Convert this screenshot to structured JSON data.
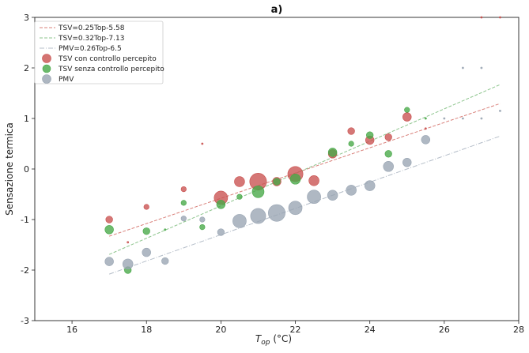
{
  "chart_data": {
    "type": "scatter",
    "title": "a)",
    "xlabel_main": "T",
    "xlabel_sub": "op",
    "xlabel_unit": " (°C)",
    "ylabel": "Sensazione termica",
    "xlim": [
      15,
      28
    ],
    "ylim": [
      -3,
      3
    ],
    "xticks": [
      16,
      18,
      20,
      22,
      24,
      26,
      28
    ],
    "yticks": [
      -3,
      -2,
      -1,
      0,
      1,
      2,
      3
    ],
    "legend_position": "top-left",
    "fit_lines": [
      {
        "name": "TSV=0.25Top-5.58",
        "slope": 0.25,
        "intercept": -5.58,
        "color": "#d9807a",
        "x_range": [
          17,
          27.5
        ]
      },
      {
        "name": "TSV=0.32Top-7.13",
        "slope": 0.32,
        "intercept": -7.13,
        "color": "#8cc48c",
        "x_range": [
          17,
          27.5
        ]
      },
      {
        "name": "PMV=0.26Top-6.5",
        "slope": 0.26,
        "intercept": -6.5,
        "color": "#b4bdc8",
        "x_range": [
          17,
          27.5
        ]
      }
    ],
    "series": [
      {
        "name": "TSV con controllo percepito",
        "color": "#c9514f",
        "points": [
          {
            "x": 17,
            "y": -1.0,
            "s": 3
          },
          {
            "x": 17.5,
            "y": -1.45,
            "s": 1
          },
          {
            "x": 18,
            "y": -0.75,
            "s": 2
          },
          {
            "x": 19,
            "y": -0.4,
            "s": 2
          },
          {
            "x": 19.5,
            "y": 0.5,
            "s": 1
          },
          {
            "x": 20,
            "y": -0.57,
            "s": 7
          },
          {
            "x": 20.5,
            "y": -0.25,
            "s": 5
          },
          {
            "x": 21,
            "y": -0.25,
            "s": 9
          },
          {
            "x": 21.5,
            "y": -0.25,
            "s": 4
          },
          {
            "x": 22,
            "y": -0.1,
            "s": 8
          },
          {
            "x": 22.5,
            "y": -0.23,
            "s": 5
          },
          {
            "x": 23,
            "y": 0.3,
            "s": 4
          },
          {
            "x": 23.5,
            "y": 0.75,
            "s": 3
          },
          {
            "x": 24,
            "y": 0.57,
            "s": 4
          },
          {
            "x": 24.5,
            "y": 0.63,
            "s": 3
          },
          {
            "x": 25,
            "y": 1.03,
            "s": 4
          },
          {
            "x": 25.5,
            "y": 0.8,
            "s": 1
          },
          {
            "x": 27,
            "y": 3.0,
            "s": 1
          },
          {
            "x": 27.5,
            "y": 3.0,
            "s": 1
          }
        ]
      },
      {
        "name": "TSV senza controllo percepito",
        "color": "#46a846",
        "points": [
          {
            "x": 17,
            "y": -1.2,
            "s": 4
          },
          {
            "x": 17.5,
            "y": -2.0,
            "s": 3
          },
          {
            "x": 18,
            "y": -1.23,
            "s": 3
          },
          {
            "x": 18.5,
            "y": -1.2,
            "s": 1
          },
          {
            "x": 19,
            "y": -0.67,
            "s": 2
          },
          {
            "x": 19.5,
            "y": -1.15,
            "s": 2
          },
          {
            "x": 20,
            "y": -0.7,
            "s": 4
          },
          {
            "x": 20.5,
            "y": -0.55,
            "s": 2
          },
          {
            "x": 21,
            "y": -0.45,
            "s": 6
          },
          {
            "x": 21.5,
            "y": -0.25,
            "s": 3
          },
          {
            "x": 22,
            "y": -0.2,
            "s": 5
          },
          {
            "x": 23,
            "y": 0.33,
            "s": 4
          },
          {
            "x": 23.5,
            "y": 0.5,
            "s": 2
          },
          {
            "x": 24,
            "y": 0.67,
            "s": 3
          },
          {
            "x": 24.5,
            "y": 0.3,
            "s": 3
          },
          {
            "x": 25,
            "y": 1.17,
            "s": 2
          },
          {
            "x": 25.5,
            "y": 1.0,
            "s": 1
          }
        ]
      },
      {
        "name": "PMV",
        "color": "#98a4b2",
        "points": [
          {
            "x": 17,
            "y": -1.83,
            "s": 4
          },
          {
            "x": 17.5,
            "y": -1.88,
            "s": 5
          },
          {
            "x": 18,
            "y": -1.65,
            "s": 4
          },
          {
            "x": 18.5,
            "y": -1.82,
            "s": 3
          },
          {
            "x": 19,
            "y": -0.98,
            "s": 2
          },
          {
            "x": 19.5,
            "y": -1.0,
            "s": 2
          },
          {
            "x": 20,
            "y": -1.25,
            "s": 3
          },
          {
            "x": 20.5,
            "y": -1.03,
            "s": 7
          },
          {
            "x": 21,
            "y": -0.93,
            "s": 8
          },
          {
            "x": 21.5,
            "y": -0.87,
            "s": 9
          },
          {
            "x": 22,
            "y": -0.77,
            "s": 7
          },
          {
            "x": 22.5,
            "y": -0.55,
            "s": 7
          },
          {
            "x": 23,
            "y": -0.52,
            "s": 5
          },
          {
            "x": 23.5,
            "y": -0.42,
            "s": 5
          },
          {
            "x": 24,
            "y": -0.33,
            "s": 5
          },
          {
            "x": 24.5,
            "y": 0.05,
            "s": 5
          },
          {
            "x": 25,
            "y": 0.13,
            "s": 4
          },
          {
            "x": 25.5,
            "y": 0.58,
            "s": 4
          },
          {
            "x": 26,
            "y": 1.0,
            "s": 1
          },
          {
            "x": 26.5,
            "y": 1.0,
            "s": 1
          },
          {
            "x": 26.5,
            "y": 2.0,
            "s": 1
          },
          {
            "x": 27,
            "y": 1.0,
            "s": 1
          },
          {
            "x": 27,
            "y": 2.0,
            "s": 1
          },
          {
            "x": 27.5,
            "y": 1.15,
            "s": 1
          }
        ]
      }
    ]
  }
}
